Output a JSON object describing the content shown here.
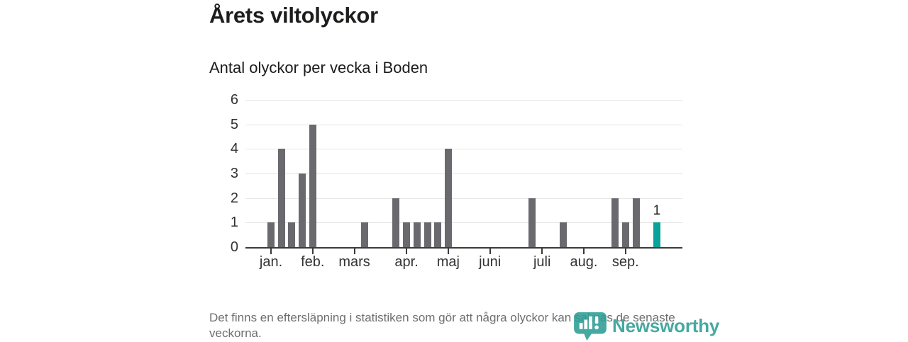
{
  "header": {
    "title": "Årets viltolyckor",
    "subtitle": "Antal olyckor per vecka i Boden"
  },
  "chart_data": {
    "type": "bar",
    "x_unit": "week",
    "values": [
      1,
      4,
      1,
      3,
      5,
      0,
      0,
      0,
      0,
      1,
      0,
      0,
      2,
      1,
      1,
      1,
      1,
      4,
      0,
      0,
      0,
      0,
      0,
      0,
      0,
      2,
      0,
      0,
      1,
      0,
      0,
      0,
      0,
      2,
      1,
      2,
      0,
      1
    ],
    "highlight_index": 37,
    "annotation": {
      "index": 37,
      "label": "1"
    },
    "month_ticks": [
      {
        "label": "jan.",
        "week": 0
      },
      {
        "label": "feb.",
        "week": 4
      },
      {
        "label": "mars",
        "week": 8
      },
      {
        "label": "apr.",
        "week": 13
      },
      {
        "label": "maj",
        "week": 17
      },
      {
        "label": "juni",
        "week": 21
      },
      {
        "label": "juli",
        "week": 26
      },
      {
        "label": "aug.",
        "week": 30
      },
      {
        "label": "sep.",
        "week": 34
      }
    ],
    "y_ticks": [
      "0",
      "1",
      "2",
      "3",
      "4",
      "5",
      "6"
    ],
    "ylim": [
      0,
      6
    ],
    "grid": "horizontal",
    "legend": "none",
    "colors": {
      "bar": "#6a696e",
      "highlight": "#0aa39b",
      "grid": "#e5e5e5",
      "axis": "#3b3b3b"
    }
  },
  "footer": {
    "note": "Det finns en eftersläpning i statistiken som gör att några olyckor kan saknas de senaste veckorna.",
    "logo_text": "Newsworthy"
  }
}
